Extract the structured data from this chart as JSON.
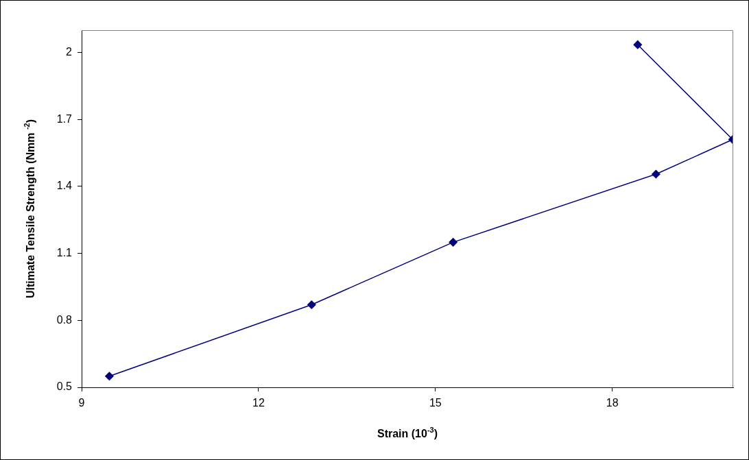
{
  "chart_data": {
    "type": "line",
    "xlabel": "Strain (10$^{-3}$)",
    "ylabel": "Ultimate Tensile Strength (Nmm $^{-2}$)",
    "series": [
      {
        "color": "#000080",
        "x": [
          9.47,
          12.9,
          15.3,
          18.74,
          20.04,
          18.43
        ],
        "values": [
          0.55,
          0.87,
          1.15,
          1.455,
          1.61,
          2.035
        ]
      }
    ],
    "xlim": [
      9,
      20.05
    ],
    "xticks": [
      9,
      12,
      15,
      18
    ],
    "ylim": [
      0.5,
      2.1
    ],
    "yticks": [
      0.5,
      0.8,
      1.1,
      1.4,
      1.7,
      2
    ],
    "marker": "diamond",
    "line_style": "solid",
    "legend": false,
    "grid": false
  }
}
